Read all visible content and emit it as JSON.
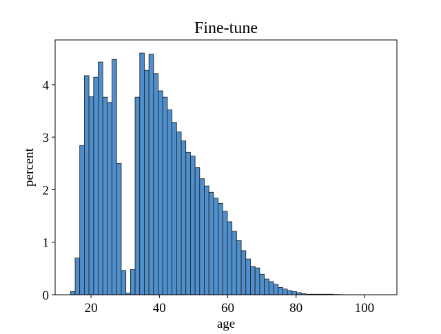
{
  "chart_data": {
    "type": "bar",
    "title": "Fine-tune",
    "xlabel": "age",
    "ylabel": "percent",
    "xlim": [
      9.5,
      109.5
    ],
    "ylim": [
      0,
      4.85
    ],
    "xticks": [
      20,
      40,
      60,
      80,
      100
    ],
    "yticks": [
      0,
      1,
      2,
      3,
      4
    ],
    "bin_start": 14,
    "bin_width": 1.35,
    "bar_color": "#4f8fcc",
    "edge_color": "#1a1a1a",
    "grid": false,
    "values": [
      0.06,
      0.7,
      2.84,
      4.17,
      3.77,
      4.14,
      4.43,
      3.76,
      3.66,
      4.48,
      2.5,
      0.46,
      0.03,
      0.48,
      3.76,
      4.6,
      4.27,
      4.58,
      4.21,
      3.88,
      3.76,
      3.52,
      3.28,
      3.1,
      2.93,
      2.71,
      2.64,
      2.42,
      2.21,
      2.07,
      1.95,
      1.84,
      1.74,
      1.59,
      1.39,
      1.21,
      1.03,
      0.84,
      0.68,
      0.54,
      0.51,
      0.39,
      0.3,
      0.25,
      0.2,
      0.14,
      0.11,
      0.08,
      0.06,
      0.04,
      0.02,
      0.01,
      0.01,
      0.01,
      0.01,
      0.01,
      0.01,
      0.005,
      0.003,
      0.002,
      0.001,
      0.001,
      0.001,
      0.001,
      0.001,
      0.001,
      0.001
    ]
  }
}
